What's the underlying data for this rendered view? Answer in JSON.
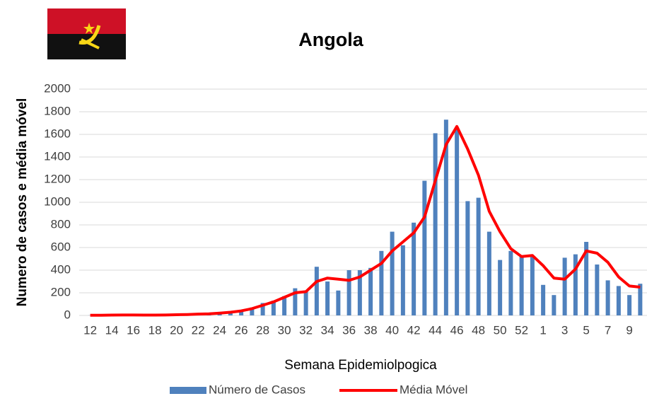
{
  "chart_data": {
    "type": "bar_line",
    "title": "Angola",
    "x_label": "Semana Epidemiolpogica",
    "y_label": "Numero de casos e média móvel",
    "categories": [
      12,
      null,
      14,
      null,
      16,
      null,
      18,
      null,
      20,
      null,
      22,
      null,
      24,
      null,
      26,
      null,
      28,
      null,
      30,
      null,
      32,
      null,
      34,
      null,
      36,
      null,
      38,
      null,
      40,
      null,
      42,
      null,
      44,
      null,
      46,
      null,
      48,
      null,
      50,
      null,
      52,
      null,
      1,
      null,
      3,
      null,
      5,
      null,
      7,
      null,
      9,
      null
    ],
    "series": [
      {
        "name": "Número de Casos",
        "type": "bar",
        "color": "#4f81bd",
        "values": [
          1,
          2,
          3,
          5,
          4,
          3,
          4,
          6,
          8,
          10,
          15,
          15,
          25,
          30,
          45,
          70,
          110,
          130,
          170,
          240,
          210,
          430,
          300,
          220,
          400,
          400,
          420,
          570,
          740,
          620,
          820,
          1190,
          1610,
          1730,
          1660,
          1010,
          1040,
          740,
          490,
          570,
          520,
          520,
          270,
          180,
          510,
          540,
          650,
          450,
          310,
          260,
          180,
          280
        ]
      },
      {
        "name": "Média Móvel",
        "type": "line",
        "color": "#ff0000",
        "values": [
          2,
          2,
          3,
          4,
          4,
          3,
          3,
          4,
          6,
          8,
          12,
          14,
          20,
          28,
          40,
          60,
          90,
          120,
          160,
          200,
          210,
          300,
          330,
          320,
          310,
          340,
          400,
          460,
          570,
          650,
          730,
          870,
          1190,
          1510,
          1670,
          1470,
          1240,
          920,
          740,
          590,
          520,
          530,
          440,
          330,
          320,
          410,
          570,
          550,
          470,
          340,
          260,
          250
        ]
      }
    ],
    "ylim": [
      0,
      2000
    ],
    "yticks": [
      0,
      200,
      400,
      600,
      800,
      1000,
      1200,
      1400,
      1600,
      1800,
      2000
    ],
    "grid": true
  }
}
